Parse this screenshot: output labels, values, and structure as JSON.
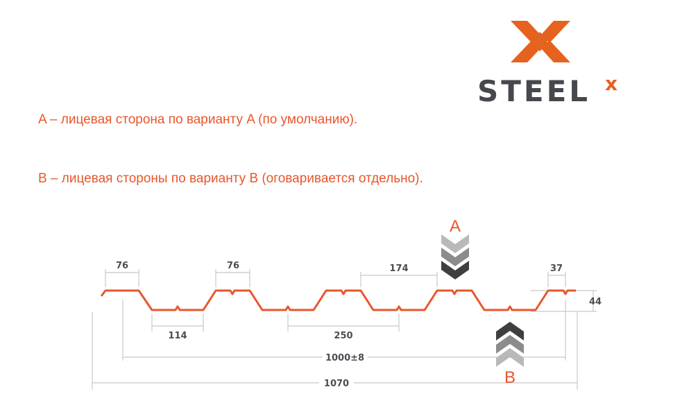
{
  "logo": {
    "text": "STEEL",
    "superscript": "x",
    "colors": {
      "orange": "#e5621f",
      "gray": "#45484d"
    }
  },
  "descriptions": [
    "A – лицевая сторона по варианту A (по умолчанию).",
    "B – лицевая стороны по варианту B (оговаривается отдельно)."
  ],
  "diagram": {
    "profile_color": "#e8562b",
    "dimension_color": "#c8c8c8",
    "side_labels": {
      "a": "A",
      "b": "B"
    },
    "dimensions": {
      "crest_left": "76",
      "crest_mid": "76",
      "valley": "114",
      "pitch": "250",
      "gap": "174",
      "edge": "37",
      "height": "44",
      "useful_width": "1000±8",
      "total_width": "1070"
    }
  }
}
